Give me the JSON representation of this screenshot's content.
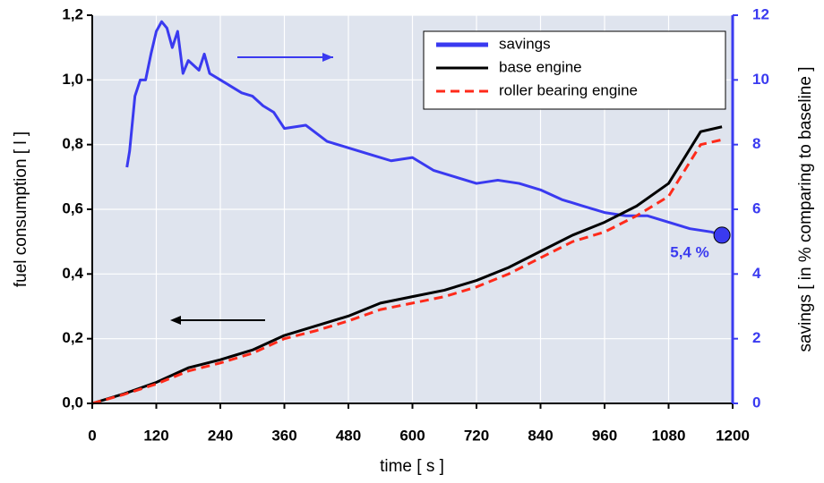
{
  "chart_data": {
    "type": "line",
    "xlabel": "time [ s ]",
    "ylabel": "fuel consumption  [ l ]",
    "y2label": "savings  [ in % comparing to baseline ]",
    "annotation": "5,4 %",
    "xlim": [
      0,
      1200
    ],
    "xticks": [
      0,
      120,
      240,
      360,
      480,
      600,
      720,
      840,
      960,
      1080,
      1200
    ],
    "ylim": [
      0,
      1.2
    ],
    "yticks": [
      {
        "value": 0,
        "label": "0,0"
      },
      {
        "value": 0.2,
        "label": "0,2"
      },
      {
        "value": 0.4,
        "label": "0,4"
      },
      {
        "value": 0.6,
        "label": "0,6"
      },
      {
        "value": 0.8,
        "label": "0,8"
      },
      {
        "value": 1.0,
        "label": "1,0"
      },
      {
        "value": 1.2,
        "label": "1,2"
      }
    ],
    "y2lim": [
      0,
      12
    ],
    "y2ticks": [
      0,
      2,
      4,
      6,
      8,
      10,
      12
    ],
    "y2color": "#3a3af0",
    "grid": true,
    "series": [
      {
        "name": "savings",
        "color": "#3a3af0",
        "axis": "y2",
        "dash": false,
        "x": [
          65,
          70,
          80,
          90,
          100,
          110,
          120,
          130,
          140,
          150,
          160,
          170,
          180,
          200,
          210,
          220,
          240,
          260,
          280,
          300,
          320,
          340,
          360,
          400,
          440,
          480,
          520,
          560,
          600,
          640,
          680,
          720,
          760,
          800,
          840,
          880,
          920,
          960,
          1000,
          1040,
          1080,
          1120,
          1160,
          1180
        ],
        "values": [
          7.3,
          7.8,
          9.5,
          10.0,
          10.0,
          10.8,
          11.5,
          11.8,
          11.6,
          11.0,
          11.5,
          10.2,
          10.6,
          10.3,
          10.8,
          10.2,
          10.0,
          9.8,
          9.6,
          9.5,
          9.2,
          9.0,
          8.5,
          8.6,
          8.1,
          7.9,
          7.7,
          7.5,
          7.6,
          7.2,
          7.0,
          6.8,
          6.9,
          6.8,
          6.6,
          6.3,
          6.1,
          5.9,
          5.8,
          5.8,
          5.6,
          5.4,
          5.3,
          5.2
        ]
      },
      {
        "name": "base engine",
        "color": "#000000",
        "dash": false,
        "x": [
          0,
          60,
          120,
          180,
          240,
          300,
          360,
          420,
          480,
          540,
          600,
          660,
          720,
          780,
          840,
          900,
          960,
          1020,
          1080,
          1140,
          1180
        ],
        "values": [
          0,
          0.03,
          0.065,
          0.11,
          0.135,
          0.165,
          0.21,
          0.24,
          0.27,
          0.31,
          0.33,
          0.35,
          0.38,
          0.42,
          0.47,
          0.52,
          0.56,
          0.61,
          0.68,
          0.84,
          0.855
        ]
      },
      {
        "name": "roller bearing engine",
        "color": "#ff2a1a",
        "dash": true,
        "x": [
          0,
          60,
          120,
          180,
          240,
          300,
          360,
          420,
          480,
          540,
          600,
          660,
          720,
          780,
          840,
          900,
          960,
          1020,
          1080,
          1140,
          1180
        ],
        "values": [
          0,
          0.028,
          0.06,
          0.1,
          0.125,
          0.155,
          0.2,
          0.225,
          0.255,
          0.29,
          0.31,
          0.33,
          0.36,
          0.4,
          0.45,
          0.5,
          0.53,
          0.58,
          0.64,
          0.8,
          0.815
        ]
      }
    ]
  }
}
